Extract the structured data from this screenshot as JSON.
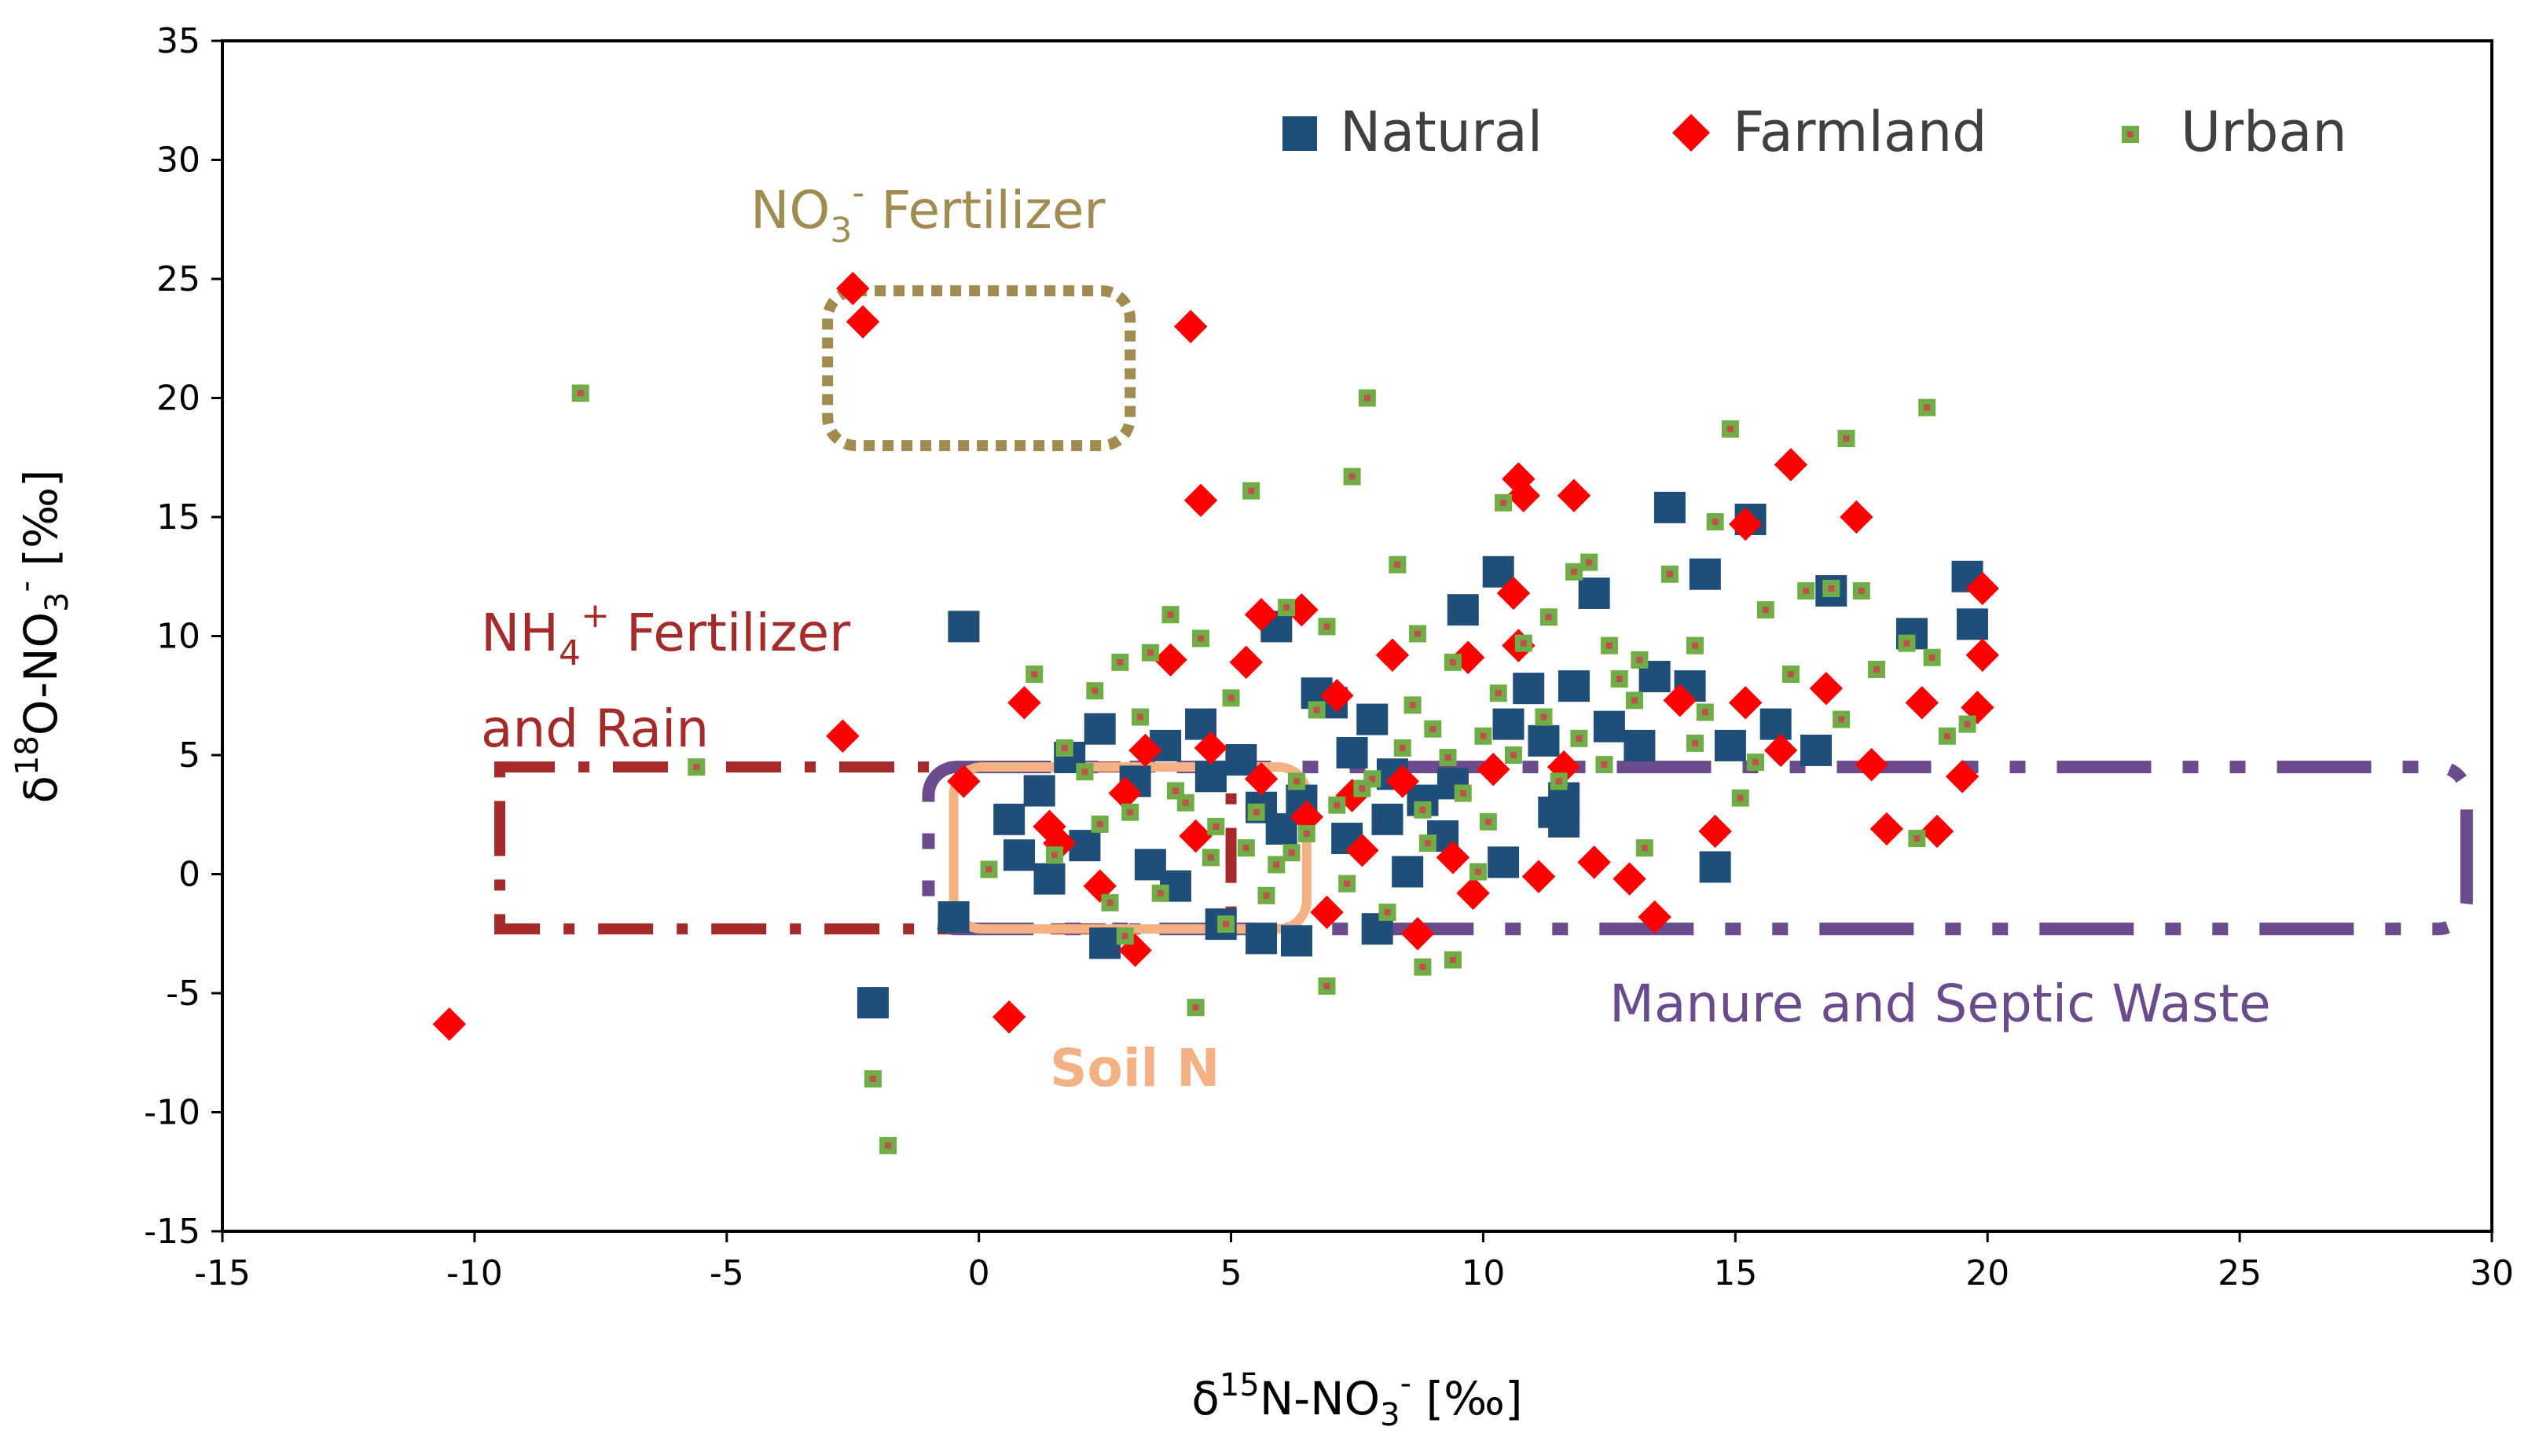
{
  "chart_data": {
    "type": "scatter",
    "title": "",
    "xlabel": "δ15N-NO3- [‰]",
    "ylabel": "δ18O-NO3- [‰]",
    "xlabel_parts": {
      "delta": "δ",
      "sup1": "15",
      "mid": "N-NO",
      "sub": "3",
      "sup2": "-",
      "unit": " [‰]"
    },
    "ylabel_parts": {
      "delta": "δ",
      "sup1": "18",
      "mid": "O-NO",
      "sub": "3",
      "sup2": "-",
      "unit": " [‰]"
    },
    "xlim": [
      -15,
      30
    ],
    "ylim": [
      -15,
      35
    ],
    "x_ticks": [
      -15,
      -10,
      -5,
      0,
      5,
      10,
      15,
      20,
      25,
      30
    ],
    "y_ticks": [
      -15,
      -10,
      -5,
      0,
      5,
      10,
      15,
      20,
      25,
      30,
      35
    ],
    "grid": false,
    "legend_position": "top-right",
    "colors": {
      "natural": "#1f4e79",
      "farmland": "#ff0000",
      "urban": "#70ad47",
      "urban_core": "#c0504d"
    },
    "series": [
      {
        "name": "Natural",
        "marker": "square",
        "color": "#1f4e79",
        "points": [
          [
            -0.3,
            10.4
          ],
          [
            -2.1,
            -5.4
          ],
          [
            -0.5,
            -1.8
          ],
          [
            0.6,
            2.3
          ],
          [
            1.2,
            3.5
          ],
          [
            1.8,
            4.9
          ],
          [
            1.4,
            -0.2
          ],
          [
            2.4,
            6.1
          ],
          [
            2.5,
            -2.9
          ],
          [
            3.1,
            3.9
          ],
          [
            3.7,
            5.4
          ],
          [
            4.4,
            6.3
          ],
          [
            4.6,
            4.1
          ],
          [
            5.2,
            4.8
          ],
          [
            5.6,
            2.8
          ],
          [
            5.9,
            10.4
          ],
          [
            6.4,
            3.1
          ],
          [
            6.7,
            7.6
          ],
          [
            7.0,
            7.2
          ],
          [
            7.4,
            5.1
          ],
          [
            7.8,
            6.5
          ],
          [
            8.2,
            4.2
          ],
          [
            8.8,
            3.1
          ],
          [
            9.4,
            3.8
          ],
          [
            9.6,
            11.1
          ],
          [
            10.3,
            12.7
          ],
          [
            10.5,
            6.3
          ],
          [
            10.9,
            7.8
          ],
          [
            11.2,
            5.6
          ],
          [
            11.4,
            2.6
          ],
          [
            11.6,
            3.2
          ],
          [
            11.8,
            7.9
          ],
          [
            12.2,
            11.8
          ],
          [
            12.5,
            6.2
          ],
          [
            13.1,
            5.4
          ],
          [
            13.4,
            8.3
          ],
          [
            13.7,
            15.4
          ],
          [
            14.1,
            7.9
          ],
          [
            14.4,
            12.6
          ],
          [
            14.6,
            0.3
          ],
          [
            14.9,
            5.4
          ],
          [
            15.3,
            14.9
          ],
          [
            15.8,
            6.3
          ],
          [
            16.6,
            5.2
          ],
          [
            16.9,
            11.9
          ],
          [
            18.5,
            10.1
          ],
          [
            19.6,
            12.5
          ],
          [
            19.7,
            10.5
          ],
          [
            3.9,
            -0.5
          ],
          [
            4.8,
            -2.1
          ],
          [
            5.6,
            -2.7
          ],
          [
            6.3,
            -2.8
          ],
          [
            7.9,
            -2.3
          ],
          [
            8.5,
            0.1
          ],
          [
            9.2,
            1.6
          ],
          [
            10.4,
            0.5
          ],
          [
            11.6,
            2.2
          ],
          [
            2.1,
            1.2
          ],
          [
            3.4,
            0.4
          ],
          [
            6.0,
            1.9
          ],
          [
            7.3,
            1.5
          ],
          [
            8.1,
            2.3
          ],
          [
            0.8,
            0.8
          ]
        ]
      },
      {
        "name": "Farmland",
        "marker": "diamond",
        "color": "#ff0000",
        "points": [
          [
            -10.5,
            -6.3
          ],
          [
            -2.5,
            24.6
          ],
          [
            -2.3,
            23.2
          ],
          [
            4.2,
            23.0
          ],
          [
            4.4,
            15.7
          ],
          [
            -2.7,
            5.8
          ],
          [
            -0.3,
            3.9
          ],
          [
            0.6,
            -6.0
          ],
          [
            0.9,
            7.2
          ],
          [
            1.6,
            1.3
          ],
          [
            2.4,
            -0.5
          ],
          [
            3.1,
            -3.2
          ],
          [
            3.8,
            9.0
          ],
          [
            4.6,
            5.3
          ],
          [
            5.3,
            8.9
          ],
          [
            5.6,
            10.9
          ],
          [
            6.4,
            11.1
          ],
          [
            7.1,
            7.5
          ],
          [
            7.4,
            3.3
          ],
          [
            8.2,
            9.2
          ],
          [
            8.7,
            -2.5
          ],
          [
            9.4,
            0.7
          ],
          [
            9.7,
            9.1
          ],
          [
            10.2,
            4.4
          ],
          [
            10.6,
            11.8
          ],
          [
            10.7,
            16.6
          ],
          [
            10.8,
            15.9
          ],
          [
            11.1,
            -0.1
          ],
          [
            11.8,
            15.9
          ],
          [
            12.2,
            0.5
          ],
          [
            12.9,
            -0.2
          ],
          [
            13.4,
            -1.8
          ],
          [
            13.9,
            7.3
          ],
          [
            14.6,
            1.8
          ],
          [
            15.2,
            7.2
          ],
          [
            15.2,
            14.7
          ],
          [
            15.9,
            5.2
          ],
          [
            16.1,
            17.2
          ],
          [
            16.8,
            7.8
          ],
          [
            17.4,
            15.0
          ],
          [
            17.7,
            4.6
          ],
          [
            18.0,
            1.9
          ],
          [
            18.7,
            7.2
          ],
          [
            19.0,
            1.8
          ],
          [
            19.5,
            4.1
          ],
          [
            19.8,
            7.0
          ],
          [
            19.9,
            9.2
          ],
          [
            19.9,
            12.0
          ],
          [
            1.4,
            2.0
          ],
          [
            2.9,
            3.4
          ],
          [
            4.3,
            1.6
          ],
          [
            5.6,
            4.0
          ],
          [
            6.5,
            2.4
          ],
          [
            7.6,
            1.0
          ],
          [
            8.4,
            3.9
          ],
          [
            9.8,
            -0.8
          ],
          [
            10.7,
            9.6
          ],
          [
            3.3,
            5.2
          ],
          [
            6.9,
            -1.6
          ],
          [
            11.6,
            4.5
          ]
        ]
      },
      {
        "name": "Urban",
        "marker": "small-square",
        "color": "#70ad47",
        "points": [
          [
            -7.9,
            20.2
          ],
          [
            -5.6,
            4.5
          ],
          [
            -2.1,
            -8.6
          ],
          [
            -1.8,
            -11.4
          ],
          [
            0.2,
            0.2
          ],
          [
            1.1,
            8.4
          ],
          [
            1.7,
            5.3
          ],
          [
            2.3,
            7.7
          ],
          [
            2.8,
            8.9
          ],
          [
            3.4,
            9.3
          ],
          [
            3.8,
            10.9
          ],
          [
            4.4,
            9.9
          ],
          [
            5.4,
            16.1
          ],
          [
            6.1,
            11.2
          ],
          [
            6.9,
            10.4
          ],
          [
            7.4,
            16.7
          ],
          [
            7.7,
            20.0
          ],
          [
            8.3,
            13.0
          ],
          [
            8.7,
            10.1
          ],
          [
            9.4,
            8.9
          ],
          [
            10.4,
            15.6
          ],
          [
            10.8,
            9.7
          ],
          [
            11.3,
            10.8
          ],
          [
            11.8,
            12.7
          ],
          [
            12.1,
            13.1
          ],
          [
            12.5,
            9.6
          ],
          [
            13.1,
            9.0
          ],
          [
            13.7,
            12.6
          ],
          [
            14.2,
            9.6
          ],
          [
            14.6,
            14.8
          ],
          [
            14.9,
            18.7
          ],
          [
            15.6,
            11.1
          ],
          [
            16.4,
            11.9
          ],
          [
            16.9,
            12.0
          ],
          [
            17.2,
            18.3
          ],
          [
            17.5,
            11.9
          ],
          [
            18.4,
            9.7
          ],
          [
            18.8,
            19.6
          ],
          [
            19.2,
            5.8
          ],
          [
            19.6,
            6.3
          ],
          [
            4.3,
            -5.6
          ],
          [
            6.9,
            -4.7
          ],
          [
            8.8,
            -3.9
          ],
          [
            9.4,
            -3.6
          ],
          [
            13.2,
            1.1
          ],
          [
            14.2,
            5.5
          ],
          [
            15.1,
            3.2
          ],
          [
            16.1,
            8.4
          ],
          [
            17.1,
            6.5
          ],
          [
            18.6,
            1.5
          ],
          [
            2.1,
            4.3
          ],
          [
            3.0,
            2.6
          ],
          [
            3.9,
            3.5
          ],
          [
            4.7,
            2.0
          ],
          [
            5.3,
            1.1
          ],
          [
            5.9,
            0.4
          ],
          [
            6.5,
            1.7
          ],
          [
            7.1,
            2.9
          ],
          [
            7.8,
            4.0
          ],
          [
            8.4,
            5.3
          ],
          [
            9.0,
            6.1
          ],
          [
            9.6,
            3.4
          ],
          [
            10.1,
            2.2
          ],
          [
            10.6,
            5.0
          ],
          [
            11.2,
            6.6
          ],
          [
            11.9,
            5.7
          ],
          [
            12.4,
            4.6
          ],
          [
            13.0,
            7.3
          ],
          [
            1.5,
            0.8
          ],
          [
            2.6,
            -1.2
          ],
          [
            3.6,
            -0.8
          ],
          [
            4.6,
            0.7
          ],
          [
            5.7,
            -0.9
          ],
          [
            6.3,
            3.9
          ],
          [
            7.3,
            -0.4
          ],
          [
            8.1,
            -1.6
          ],
          [
            8.9,
            1.3
          ],
          [
            9.9,
            0.1
          ],
          [
            3.2,
            6.6
          ],
          [
            5.0,
            7.4
          ],
          [
            6.7,
            6.9
          ],
          [
            8.6,
            7.1
          ],
          [
            10.3,
            7.6
          ],
          [
            12.7,
            8.2
          ],
          [
            14.4,
            6.8
          ],
          [
            15.4,
            4.7
          ],
          [
            17.8,
            8.6
          ],
          [
            18.9,
            9.1
          ],
          [
            2.4,
            2.1
          ],
          [
            4.1,
            3.0
          ],
          [
            5.5,
            2.6
          ],
          [
            6.2,
            0.9
          ],
          [
            7.6,
            3.6
          ],
          [
            8.8,
            2.7
          ],
          [
            9.3,
            4.9
          ],
          [
            10.0,
            5.8
          ],
          [
            11.5,
            3.9
          ],
          [
            4.9,
            -2.1
          ],
          [
            2.9,
            -2.6
          ]
        ]
      }
    ],
    "annotations": [
      {
        "name": "NO3- Fertilizer",
        "text": "NO3- Fertilizer",
        "color": "#a08c50",
        "style": "dotted",
        "label_parts": {
          "a": "NO",
          "sub": "3",
          "sup": "-",
          "b": " Fertilizer"
        },
        "x_range": [
          -3,
          3
        ],
        "y_range": [
          18,
          24.5
        ]
      },
      {
        "name": "NH4+ Fertilizer and Rain",
        "text": "NH4+ Fertilizer and Rain",
        "color": "#a52a2a",
        "style": "dash-dot",
        "label_parts": {
          "a": "NH",
          "sub": "4",
          "sup": "+",
          "b": " Fertilizer",
          "line2": "and Rain"
        },
        "x_range": [
          -9.5,
          5
        ],
        "y_range": [
          -2.3,
          4.5
        ]
      },
      {
        "name": "Manure and Septic Waste",
        "text": "Manure and Septic Waste",
        "color": "#6a4c8c",
        "style": "dash-dot-dot",
        "x_range": [
          -1,
          29.5
        ],
        "y_range": [
          -2.3,
          4.5
        ]
      },
      {
        "name": "Soil N",
        "text": "Soil N",
        "color": "#f4b183",
        "style": "solid",
        "x_range": [
          -0.5,
          6.5
        ],
        "y_range": [
          -2.3,
          4.5
        ]
      }
    ]
  }
}
